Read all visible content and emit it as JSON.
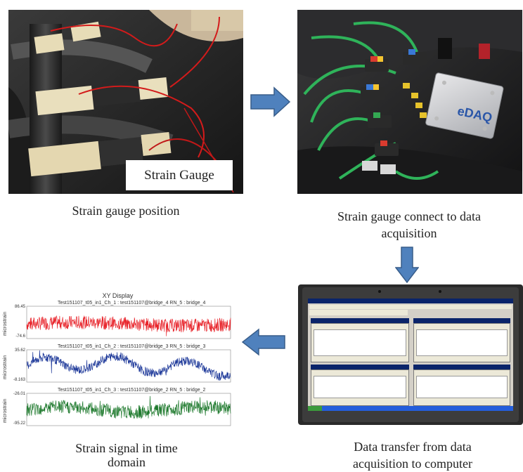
{
  "panels": {
    "strain_gauge_photo": {
      "overlay_label": "Strain Gauge"
    },
    "edaq_photo": {
      "device_label": "eDAQ"
    },
    "laptop_photo": {},
    "xy_display": {
      "title": "XY Display",
      "plots": [
        {
          "header": "Test151107_t05_in1_Ch_1 : test151107@bridge_4 RN_5 : bridge_4",
          "ylabel": "microstrain",
          "ymax": "86.45",
          "ymin": "-74.6",
          "color": "#e8232a"
        },
        {
          "header": "Test151107_t05_in1_Ch_2 : test151107@bridge_3 RN_5 : bridge_3",
          "ylabel": "microstrain",
          "ymax": "35.62",
          "ymin": "-8.163",
          "color": "#1f3a9a"
        },
        {
          "header": "Test151107_t05_in1_Ch_3 : test151107@bridge_2 RN_5 : bridge_2",
          "ylabel": "microstrain",
          "ymax": "-26.01",
          "ymin": "-95.22",
          "color": "#1f7a2e"
        }
      ]
    }
  },
  "captions": {
    "c1": "Strain gauge position",
    "c2_line1": "Strain gauge connect to data",
    "c2_line2": "acquisition",
    "c3_line1": "Strain signal in time",
    "c3_line2": "domain",
    "c4_line1": "Data transfer from data",
    "c4_line2": "acquisition to computer"
  },
  "colors": {
    "arrow_fill": "#4f81bd",
    "arrow_stroke": "#385d8a"
  },
  "icons": [
    "arrow-right-icon",
    "arrow-down-icon",
    "arrow-left-icon"
  ]
}
